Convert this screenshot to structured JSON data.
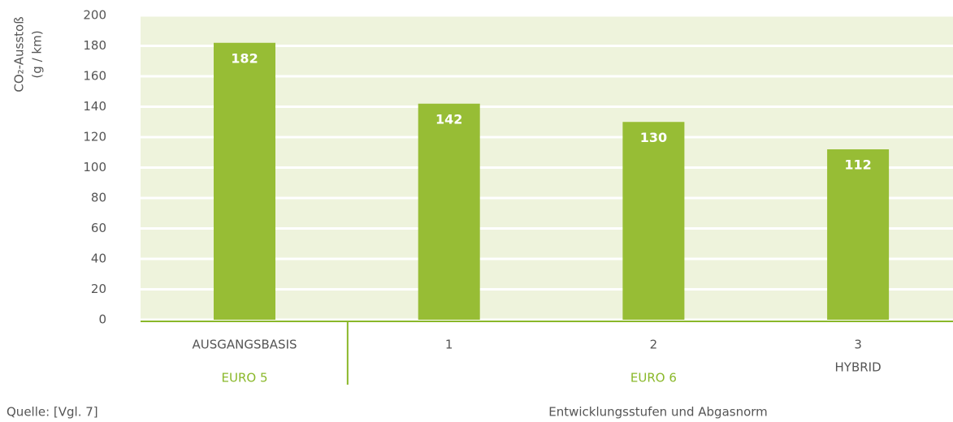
{
  "chart_data": {
    "type": "bar",
    "y_label": "CO₂-Ausstoß",
    "y_unit": "(g / km)",
    "x_label": "Entwicklungsstufen und Abgasnorm",
    "source": "Quelle: [Vgl. 7]",
    "categories": [
      "AUSGANGSBASIS",
      "1",
      "2",
      "3"
    ],
    "category_sublabels": [
      null,
      null,
      null,
      "HYBRID"
    ],
    "groups": [
      {
        "label": "EURO 5",
        "size": 1
      },
      {
        "label": "EURO 6",
        "size": 3
      }
    ],
    "values": [
      182,
      142,
      130,
      112
    ],
    "color": "#97bd35",
    "ylim": [
      0,
      200
    ],
    "yticks": [
      0,
      20,
      40,
      60,
      80,
      100,
      120,
      140,
      160,
      180,
      200
    ],
    "grid": true
  }
}
